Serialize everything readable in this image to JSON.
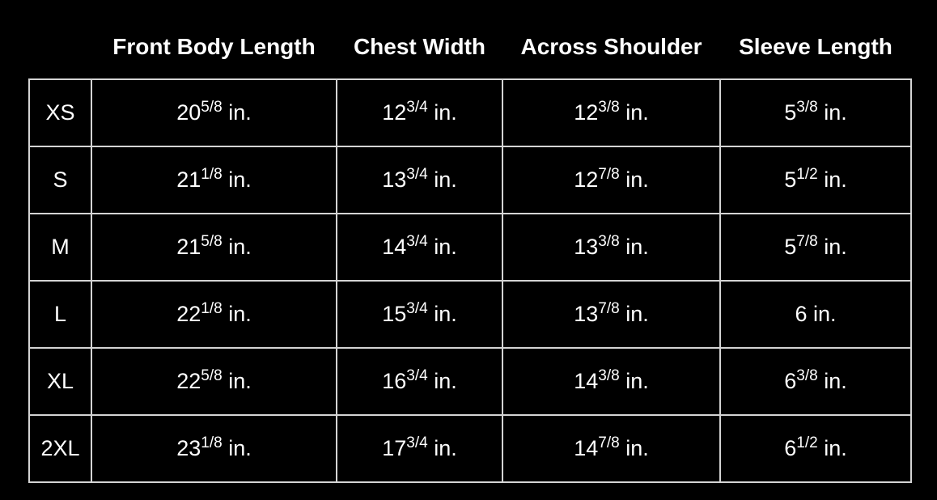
{
  "table": {
    "columns": [
      "Front Body Length",
      "Chest Width",
      "Across Shoulder",
      "Sleeve Length"
    ],
    "rows": [
      {
        "size": "XS",
        "cells": [
          {
            "whole": "20",
            "fraction": "5/8",
            "unit": "in."
          },
          {
            "whole": "12",
            "fraction": "3/4",
            "unit": "in."
          },
          {
            "whole": "12",
            "fraction": "3/8",
            "unit": "in."
          },
          {
            "whole": "5",
            "fraction": "3/8",
            "unit": "in."
          }
        ]
      },
      {
        "size": "S",
        "cells": [
          {
            "whole": "21",
            "fraction": "1/8",
            "unit": "in."
          },
          {
            "whole": "13",
            "fraction": "3/4",
            "unit": "in."
          },
          {
            "whole": "12",
            "fraction": "7/8",
            "unit": "in."
          },
          {
            "whole": "5",
            "fraction": "1/2",
            "unit": "in."
          }
        ]
      },
      {
        "size": "M",
        "cells": [
          {
            "whole": "21",
            "fraction": "5/8",
            "unit": "in."
          },
          {
            "whole": "14",
            "fraction": "3/4",
            "unit": "in."
          },
          {
            "whole": "13",
            "fraction": "3/8",
            "unit": "in."
          },
          {
            "whole": "5",
            "fraction": "7/8",
            "unit": "in."
          }
        ]
      },
      {
        "size": "L",
        "cells": [
          {
            "whole": "22",
            "fraction": "1/8",
            "unit": "in."
          },
          {
            "whole": "15",
            "fraction": "3/4",
            "unit": "in."
          },
          {
            "whole": "13",
            "fraction": "7/8",
            "unit": "in."
          },
          {
            "whole": "6",
            "unit": "in."
          }
        ]
      },
      {
        "size": "XL",
        "cells": [
          {
            "whole": "22",
            "fraction": "5/8",
            "unit": "in."
          },
          {
            "whole": "16",
            "fraction": "3/4",
            "unit": "in."
          },
          {
            "whole": "14",
            "fraction": "3/8",
            "unit": "in."
          },
          {
            "whole": "6",
            "fraction": "3/8",
            "unit": "in."
          }
        ]
      },
      {
        "size": "2XL",
        "cells": [
          {
            "whole": "23",
            "fraction": "1/8",
            "unit": "in."
          },
          {
            "whole": "17",
            "fraction": "3/4",
            "unit": "in."
          },
          {
            "whole": "14",
            "fraction": "7/8",
            "unit": "in."
          },
          {
            "whole": "6",
            "fraction": "1/2",
            "unit": "in."
          }
        ]
      }
    ]
  }
}
